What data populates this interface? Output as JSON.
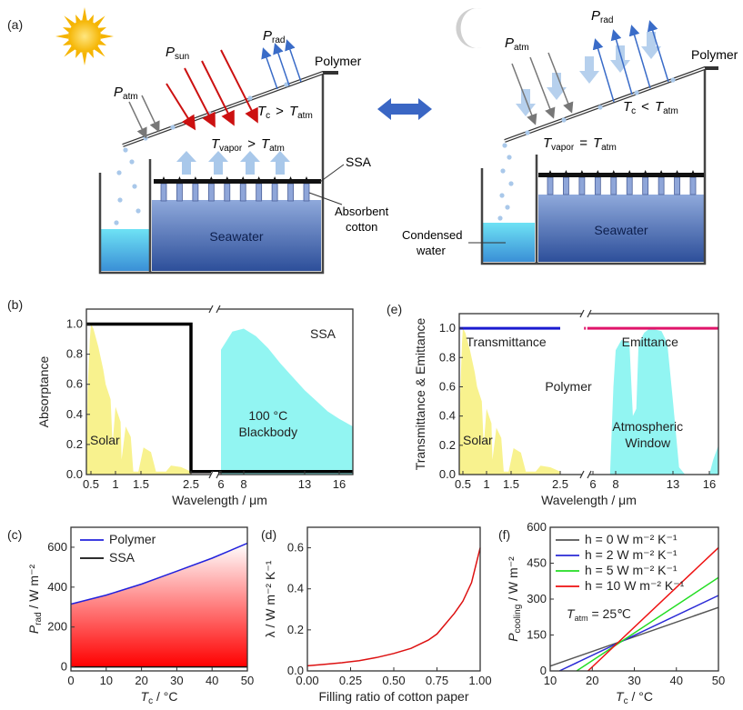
{
  "panel_labels": {
    "a": "(a)",
    "b": "(b)",
    "c": "(c)",
    "d": "(d)",
    "e": "(e)",
    "f": "(f)"
  },
  "diagram": {
    "day": {
      "p_sun": "P",
      "p_sun_sub": "sun",
      "p_atm": "P",
      "p_atm_sub": "atm",
      "p_rad": "P",
      "p_rad_sub": "rad",
      "polymer": "Polymer",
      "tc_rel": "T",
      "tc_sub": "c",
      "tc_op": ">",
      "tatm": "T",
      "tatm_sub": "atm",
      "tvap": "T",
      "tvap_sub": "vapor",
      "tvap_op": ">",
      "ssa": "SSA",
      "cotton_1": "Absorbent",
      "cotton_2": "cotton",
      "seawater": "Seawater"
    },
    "night": {
      "p_atm": "P",
      "p_atm_sub": "atm",
      "p_rad": "P",
      "p_rad_sub": "rad",
      "polymer": "Polymer",
      "tc_op": "<",
      "tvap_op": "=",
      "condensed_1": "Condensed",
      "condensed_2": "water",
      "seawater": "Seawater"
    },
    "colors": {
      "sun_arrow": "#cc1111",
      "atm_arrow": "#777777",
      "rad_arrow": "#3a6cc8",
      "seawater": "#3b63ad",
      "condensed": "#5fd6ee",
      "vapor": "#a9c8ea"
    }
  },
  "chart_data": [
    {
      "id": "b",
      "type": "area",
      "xlabel": "Wavelength / μm",
      "ylabel": "Absorptance",
      "ylim": [
        0,
        1.1
      ],
      "xticks": [
        0.5,
        1,
        1.5,
        2.5,
        6,
        8,
        13,
        16
      ],
      "xtick_labels": [
        "0.5",
        "1",
        "1.5",
        "2.5",
        "6",
        "8",
        "13",
        "16"
      ],
      "yticks": [
        0,
        0.2,
        0.4,
        0.6,
        0.8,
        1.0
      ],
      "ytick_labels": [
        "0.0",
        "0.2",
        "0.4",
        "0.6",
        "0.8",
        "1.0"
      ],
      "axis_break": [
        2.5,
        6
      ],
      "title_in_plot": "SSA",
      "series": [
        {
          "name": "Solar",
          "color": "#f7f07a",
          "x": [
            0.3,
            0.35,
            0.45,
            0.5,
            0.55,
            0.65,
            0.75,
            0.8,
            0.9,
            0.94,
            1.0,
            1.1,
            1.12,
            1.2,
            1.3,
            1.35,
            1.45,
            1.55,
            1.7,
            1.8,
            2.0,
            2.1,
            2.3,
            2.5
          ],
          "y": [
            0,
            0.55,
            0.9,
            1.0,
            0.97,
            0.85,
            0.7,
            0.6,
            0.5,
            0.2,
            0.45,
            0.35,
            0.1,
            0.32,
            0.25,
            0.02,
            0.02,
            0.18,
            0.15,
            0.02,
            0.02,
            0.06,
            0.05,
            0.02
          ]
        },
        {
          "name": "100 °C Blackbody",
          "label_lines": [
            "100 °C",
            "Blackbody"
          ],
          "color": "#7ff3f0",
          "x": [
            6,
            7,
            8,
            9,
            10,
            11,
            12,
            13,
            14,
            15,
            16,
            17.2
          ],
          "y": [
            0.83,
            0.95,
            0.97,
            0.92,
            0.84,
            0.74,
            0.65,
            0.56,
            0.49,
            0.42,
            0.37,
            0.32
          ]
        },
        {
          "name": "SSA",
          "color": "#000000",
          "x": [
            0.3,
            2.5,
            2.5,
            17.2
          ],
          "y": [
            1.0,
            1.0,
            0.02,
            0.02
          ]
        }
      ]
    },
    {
      "id": "e",
      "type": "area",
      "xlabel": "Wavelength / μm",
      "ylabel": "Transmittance & Emittance",
      "ylim": [
        0,
        1.1
      ],
      "xticks": [
        0.5,
        1,
        1.5,
        2.5,
        6,
        8,
        13,
        16
      ],
      "xtick_labels": [
        "0.5",
        "1",
        "1.5",
        "2.5",
        "6",
        "8",
        "13",
        "16"
      ],
      "yticks": [
        0,
        0.2,
        0.4,
        0.6,
        0.8,
        1.0
      ],
      "ytick_labels": [
        "0.0",
        "0.2",
        "0.4",
        "0.6",
        "0.8",
        "1.0"
      ],
      "axis_break": [
        2.5,
        6
      ],
      "title_in_plot": "Polymer",
      "series": [
        {
          "name": "Solar",
          "color": "#f7f07a",
          "x": [
            0.3,
            0.35,
            0.45,
            0.5,
            0.55,
            0.65,
            0.75,
            0.8,
            0.9,
            0.94,
            1.0,
            1.1,
            1.12,
            1.2,
            1.3,
            1.35,
            1.45,
            1.55,
            1.7,
            1.8,
            2.0,
            2.1,
            2.3,
            2.5
          ],
          "y": [
            0,
            0.55,
            0.9,
            1.0,
            0.97,
            0.85,
            0.7,
            0.6,
            0.5,
            0.2,
            0.45,
            0.35,
            0.1,
            0.32,
            0.25,
            0.02,
            0.02,
            0.18,
            0.15,
            0.02,
            0.02,
            0.06,
            0.05,
            0.02
          ]
        },
        {
          "name": "Atmospheric Window",
          "label_lines": [
            "Atmospheric",
            "Window"
          ],
          "color": "#7ff3f0",
          "x": [
            7.5,
            7.8,
            8,
            8.5,
            9.2,
            9.5,
            9.8,
            10,
            10.5,
            11,
            12,
            12.5,
            13,
            13.5,
            14,
            16,
            16.5,
            17.2
          ],
          "y": [
            0,
            0.6,
            0.85,
            0.92,
            0.9,
            0.4,
            0.45,
            0.9,
            0.97,
            1.0,
            0.98,
            0.9,
            0.5,
            0.05,
            0,
            0,
            0.1,
            0.2
          ]
        },
        {
          "name": "Transmittance",
          "color": "#1a1ad0",
          "x": [
            0.3,
            2.5
          ],
          "y": [
            1.0,
            1.0
          ]
        },
        {
          "name": "Emittance",
          "color": "#e0146a",
          "x": [
            3.2,
            17.2
          ],
          "y": [
            1.0,
            1.0
          ]
        }
      ]
    },
    {
      "id": "c",
      "type": "line",
      "xlabel": "T",
      "xlabel_sub": "c",
      "xlabel_unit": " / °C",
      "ylabel": "P",
      "ylabel_sub": "rad",
      "ylabel_unit": " / W m⁻²",
      "xlim": [
        0,
        50
      ],
      "ylim": [
        -20,
        700
      ],
      "xticks": [
        0,
        10,
        20,
        30,
        40,
        50
      ],
      "yticks": [
        0,
        200,
        400,
        600
      ],
      "legend": "top-left",
      "series": [
        {
          "name": "Polymer",
          "color": "#2222dd",
          "x": [
            0,
            10,
            20,
            30,
            40,
            50
          ],
          "y": [
            315,
            360,
            415,
            480,
            545,
            620
          ]
        },
        {
          "name": "SSA",
          "color": "#111111",
          "x": [
            0,
            50
          ],
          "y": [
            0,
            0
          ]
        }
      ]
    },
    {
      "id": "d",
      "type": "line",
      "xlabel": "Filling ratio of cotton paper",
      "ylabel": "λ / W m⁻² K⁻¹",
      "xlim": [
        0,
        1
      ],
      "ylim": [
        0,
        0.7
      ],
      "xticks": [
        0,
        0.25,
        0.5,
        0.75,
        1.0
      ],
      "xtick_labels": [
        "0.00",
        "0.25",
        "0.50",
        "0.75",
        "1.00"
      ],
      "yticks": [
        0,
        0.2,
        0.4,
        0.6
      ],
      "ytick_labels": [
        "0.0",
        "0.2",
        "0.4",
        "0.6"
      ],
      "series": [
        {
          "color": "#dd1111",
          "x": [
            0,
            0.1,
            0.2,
            0.3,
            0.4,
            0.5,
            0.6,
            0.7,
            0.75,
            0.8,
            0.85,
            0.9,
            0.95,
            1.0
          ],
          "y": [
            0.025,
            0.032,
            0.04,
            0.05,
            0.065,
            0.085,
            0.11,
            0.15,
            0.18,
            0.23,
            0.28,
            0.34,
            0.43,
            0.6
          ]
        }
      ]
    },
    {
      "id": "f",
      "type": "line",
      "xlabel": "T",
      "xlabel_sub": "c",
      "xlabel_unit": " / °C",
      "ylabel": "P",
      "ylabel_sub": "cooling",
      "ylabel_unit": " / W m⁻²",
      "xlim": [
        10,
        50
      ],
      "ylim": [
        0,
        600
      ],
      "xticks": [
        10,
        20,
        30,
        40,
        50
      ],
      "yticks": [
        0,
        150,
        300,
        450,
        600
      ],
      "legend": "top-left",
      "annotation": {
        "t": "T",
        "sub": "atm",
        "rest": " = 25℃"
      },
      "series": [
        {
          "name": "h = 0 W m⁻² K⁻¹",
          "color": "#555555",
          "x": [
            10,
            50
          ],
          "y": [
            20,
            265
          ]
        },
        {
          "name": "h = 2 W m⁻² K⁻¹",
          "color": "#2a2ad6",
          "x": [
            12.2,
            50
          ],
          "y": [
            0,
            315
          ]
        },
        {
          "name": "h = 5 W m⁻² K⁻¹",
          "color": "#22dd22",
          "x": [
            16.3,
            50
          ],
          "y": [
            0,
            390
          ]
        },
        {
          "name": "h = 10 W m⁻² K⁻¹",
          "color": "#ee1111",
          "x": [
            19,
            50
          ],
          "y": [
            0,
            515
          ]
        }
      ]
    }
  ]
}
